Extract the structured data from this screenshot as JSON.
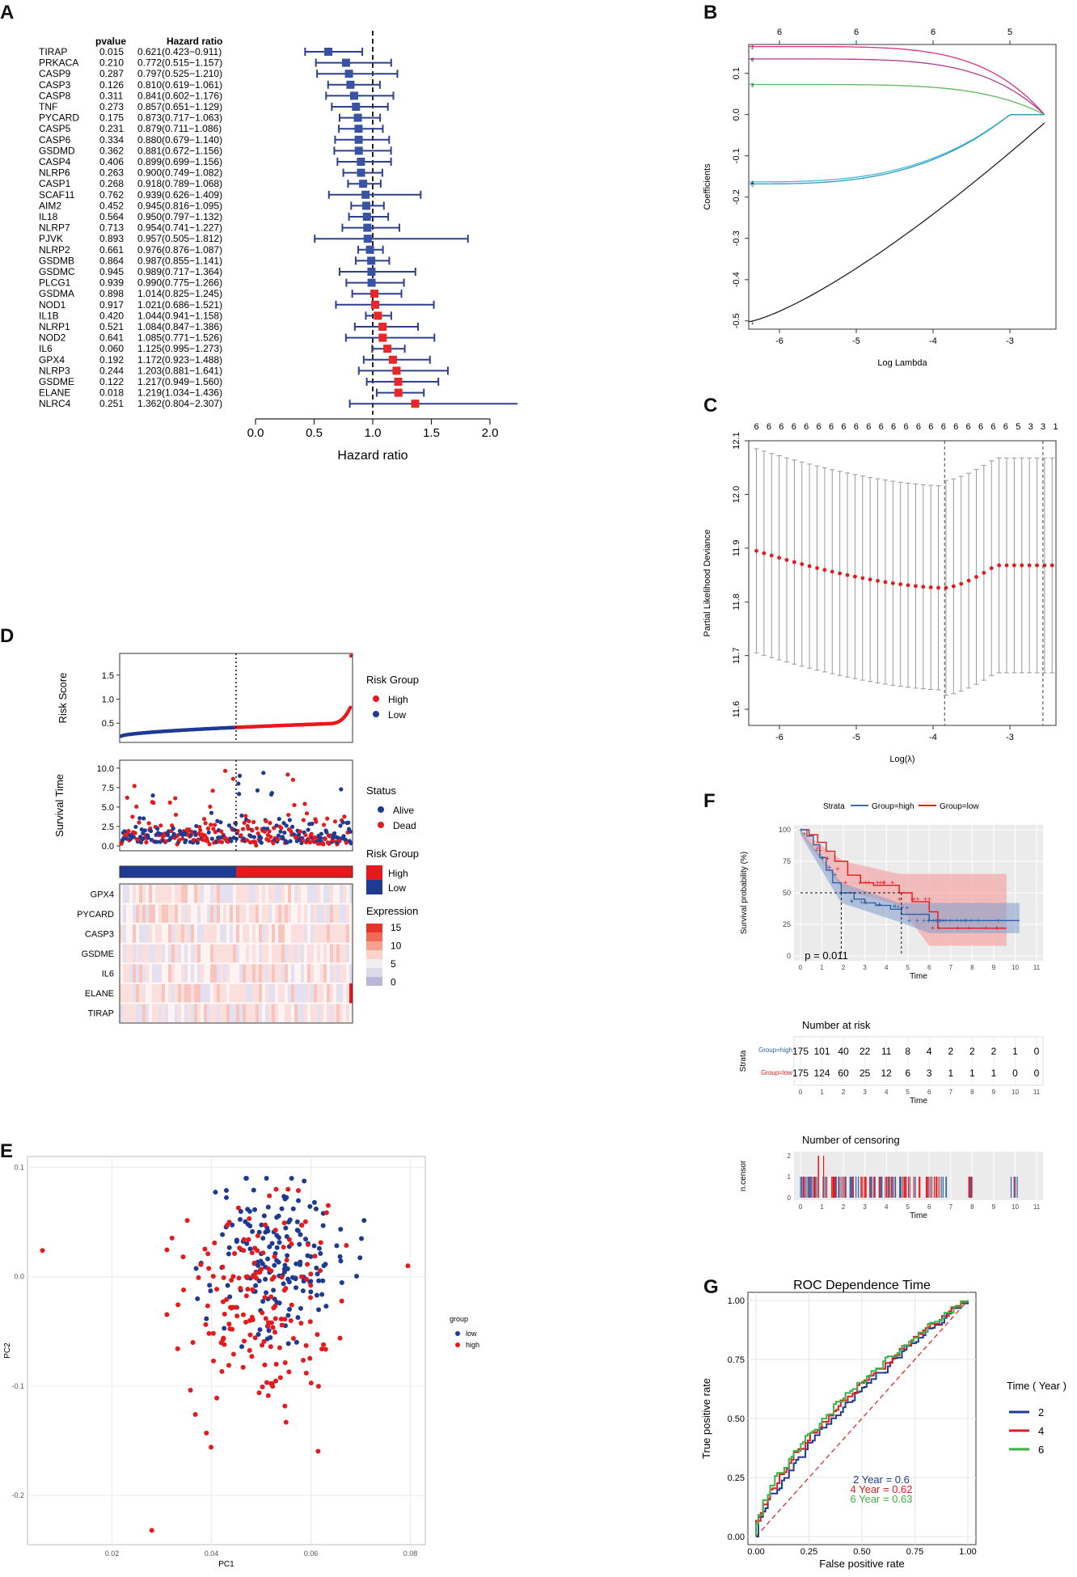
{
  "panels": {
    "A": "A",
    "B": "B",
    "C": "C",
    "D": "D",
    "E": "E",
    "F": "F",
    "G": "G"
  },
  "chart_data": [
    {
      "id": "A",
      "type": "forest",
      "xlabel": "Hazard ratio",
      "col_pvalue": "pvalue",
      "col_hr": "Hazard ratio",
      "xlim": [
        0,
        2.0
      ],
      "ticks": [
        "0.0",
        "0.5",
        "1.0",
        "1.5",
        "2.0"
      ],
      "rows": [
        {
          "gene": "TIRAP",
          "p": "0.015",
          "hr_text": "0.621(0.423−0.911)",
          "hr": 0.621,
          "lo": 0.423,
          "hi": 0.911
        },
        {
          "gene": "PRKACA",
          "p": "0.210",
          "hr_text": "0.772(0.515−1.157)",
          "hr": 0.772,
          "lo": 0.515,
          "hi": 1.157
        },
        {
          "gene": "CASP9",
          "p": "0.287",
          "hr_text": "0.797(0.525−1.210)",
          "hr": 0.797,
          "lo": 0.525,
          "hi": 1.21
        },
        {
          "gene": "CASP3",
          "p": "0.126",
          "hr_text": "0.810(0.619−1.061)",
          "hr": 0.81,
          "lo": 0.619,
          "hi": 1.061
        },
        {
          "gene": "CASP8",
          "p": "0.311",
          "hr_text": "0.841(0.602−1.176)",
          "hr": 0.841,
          "lo": 0.602,
          "hi": 1.176
        },
        {
          "gene": "TNF",
          "p": "0.273",
          "hr_text": "0.857(0.651−1.129)",
          "hr": 0.857,
          "lo": 0.651,
          "hi": 1.129
        },
        {
          "gene": "PYCARD",
          "p": "0.175",
          "hr_text": "0.873(0.717−1.063)",
          "hr": 0.873,
          "lo": 0.717,
          "hi": 1.063
        },
        {
          "gene": "CASP5",
          "p": "0.231",
          "hr_text": "0.879(0.711−1.086)",
          "hr": 0.879,
          "lo": 0.711,
          "hi": 1.086
        },
        {
          "gene": "CASP6",
          "p": "0.334",
          "hr_text": "0.880(0.679−1.140)",
          "hr": 0.88,
          "lo": 0.679,
          "hi": 1.14
        },
        {
          "gene": "GSDMD",
          "p": "0.362",
          "hr_text": "0.881(0.672−1.156)",
          "hr": 0.881,
          "lo": 0.672,
          "hi": 1.156
        },
        {
          "gene": "CASP4",
          "p": "0.406",
          "hr_text": "0.899(0.699−1.156)",
          "hr": 0.899,
          "lo": 0.699,
          "hi": 1.156
        },
        {
          "gene": "NLRP6",
          "p": "0.263",
          "hr_text": "0.900(0.749−1.082)",
          "hr": 0.9,
          "lo": 0.749,
          "hi": 1.082
        },
        {
          "gene": "CASP1",
          "p": "0.268",
          "hr_text": "0.918(0.789−1.068)",
          "hr": 0.918,
          "lo": 0.789,
          "hi": 1.068
        },
        {
          "gene": "SCAF11",
          "p": "0.762",
          "hr_text": "0.939(0.626−1.409)",
          "hr": 0.939,
          "lo": 0.626,
          "hi": 1.409
        },
        {
          "gene": "AIM2",
          "p": "0.452",
          "hr_text": "0.945(0.816−1.095)",
          "hr": 0.945,
          "lo": 0.816,
          "hi": 1.095
        },
        {
          "gene": "IL18",
          "p": "0.564",
          "hr_text": "0.950(0.797−1.132)",
          "hr": 0.95,
          "lo": 0.797,
          "hi": 1.132
        },
        {
          "gene": "NLRP7",
          "p": "0.713",
          "hr_text": "0.954(0.741−1.227)",
          "hr": 0.954,
          "lo": 0.741,
          "hi": 1.227
        },
        {
          "gene": "PJVK",
          "p": "0.893",
          "hr_text": "0.957(0.505−1.812)",
          "hr": 0.957,
          "lo": 0.505,
          "hi": 1.812
        },
        {
          "gene": "NLRP2",
          "p": "0.661",
          "hr_text": "0.976(0.876−1.087)",
          "hr": 0.976,
          "lo": 0.876,
          "hi": 1.087
        },
        {
          "gene": "GSDMB",
          "p": "0.864",
          "hr_text": "0.987(0.855−1.141)",
          "hr": 0.987,
          "lo": 0.855,
          "hi": 1.141
        },
        {
          "gene": "GSDMC",
          "p": "0.945",
          "hr_text": "0.989(0.717−1.364)",
          "hr": 0.989,
          "lo": 0.717,
          "hi": 1.364
        },
        {
          "gene": "PLCG1",
          "p": "0.939",
          "hr_text": "0.990(0.775−1.266)",
          "hr": 0.99,
          "lo": 0.775,
          "hi": 1.266
        },
        {
          "gene": "GSDMA",
          "p": "0.898",
          "hr_text": "1.014(0.825−1.245)",
          "hr": 1.014,
          "lo": 0.825,
          "hi": 1.245
        },
        {
          "gene": "NOD1",
          "p": "0.917",
          "hr_text": "1.021(0.686−1.521)",
          "hr": 1.021,
          "lo": 0.686,
          "hi": 1.521
        },
        {
          "gene": "IL1B",
          "p": "0.420",
          "hr_text": "1.044(0.941−1.158)",
          "hr": 1.044,
          "lo": 0.941,
          "hi": 1.158
        },
        {
          "gene": "NLRP1",
          "p": "0.521",
          "hr_text": "1.084(0.847−1.386)",
          "hr": 1.084,
          "lo": 0.847,
          "hi": 1.386
        },
        {
          "gene": "NOD2",
          "p": "0.641",
          "hr_text": "1.085(0.771−1.526)",
          "hr": 1.085,
          "lo": 0.771,
          "hi": 1.526
        },
        {
          "gene": "IL6",
          "p": "0.060",
          "hr_text": "1.125(0.995−1.273)",
          "hr": 1.125,
          "lo": 0.995,
          "hi": 1.273
        },
        {
          "gene": "GPX4",
          "p": "0.192",
          "hr_text": "1.172(0.923−1.488)",
          "hr": 1.172,
          "lo": 0.923,
          "hi": 1.488
        },
        {
          "gene": "NLRP3",
          "p": "0.244",
          "hr_text": "1.203(0.881−1.641)",
          "hr": 1.203,
          "lo": 0.881,
          "hi": 1.641
        },
        {
          "gene": "GSDME",
          "p": "0.122",
          "hr_text": "1.217(0.949−1.560)",
          "hr": 1.217,
          "lo": 0.949,
          "hi": 1.56
        },
        {
          "gene": "ELANE",
          "p": "0.018",
          "hr_text": "1.219(1.034−1.436)",
          "hr": 1.219,
          "lo": 1.034,
          "hi": 1.436
        },
        {
          "gene": "NLRC4",
          "p": "0.251",
          "hr_text": "1.362(0.804−2.307)",
          "hr": 1.362,
          "lo": 0.804,
          "hi": 2.307
        }
      ],
      "colors": {
        "protective": "#3953a4",
        "risk": "#e8272a"
      }
    },
    {
      "id": "B",
      "type": "line",
      "xlabel": "Log Lambda",
      "ylabel": "Coefficients",
      "xlim": [
        -6.4,
        -2.4
      ],
      "ylim": [
        -0.52,
        0.17
      ],
      "xticks": [
        "-6",
        "-5",
        "-4",
        "-3"
      ],
      "yticks": [
        "-0.5",
        "-0.4",
        "-0.3",
        "-0.2",
        "-0.1",
        "0.0",
        "0.1"
      ],
      "top_ticks": [
        "6",
        "6",
        "6",
        "5"
      ],
      "series": [
        {
          "name": "2",
          "color": "#d63384",
          "start": 0.165
        },
        {
          "name": "6",
          "color": "#b03a8a",
          "start": 0.135
        },
        {
          "name": "3",
          "color": "#5cb85c",
          "start": 0.073
        },
        {
          "name": "4",
          "color": "#46b8da",
          "start": -0.163
        },
        {
          "name": "5",
          "color": "#2a9dbf",
          "start": -0.168
        },
        {
          "name": "1",
          "color": "#222222",
          "start": -0.502
        }
      ]
    },
    {
      "id": "C",
      "type": "errorbar",
      "xlabel": "Log(λ)",
      "ylabel": "Partial Likelihood Deviance",
      "xlim": [
        -6.4,
        -2.4
      ],
      "ylim": [
        11.57,
        12.1
      ],
      "xticks": [
        "-6",
        "-5",
        "-4",
        "-3"
      ],
      "yticks": [
        "11.6",
        "11.7",
        "11.8",
        "11.9",
        "12.0",
        "12.1"
      ],
      "top_ticks": [
        "6",
        "6",
        "6",
        "6",
        "6",
        "6",
        "6",
        "6",
        "6",
        "6",
        "6",
        "6",
        "6",
        "6",
        "6",
        "6",
        "6",
        "6",
        "6",
        "6",
        "6",
        "5",
        "3",
        "3",
        "1"
      ],
      "vlines": [
        -3.85,
        -2.57
      ],
      "center_min": 11.826,
      "center_start": 11.895
    },
    {
      "id": "D",
      "type": "risk-plot",
      "risk_label": "Risk Score",
      "surv_label": "Survival Time",
      "risk_yticks": [
        "0.5",
        "1.0",
        "1.5"
      ],
      "surv_yticks": [
        "0.0",
        "2.5",
        "5.0",
        "7.5",
        "10.0"
      ],
      "legend_risk_title": "Risk Group",
      "legend_high": "High",
      "legend_low": "Low",
      "legend_status_title": "Status",
      "legend_alive": "Alive",
      "legend_dead": "Dead",
      "legend_risk_title2": "Risk Group",
      "legend_high2": "High",
      "legend_low2": "Low",
      "legend_expr_title": "Expression",
      "expr_ticks": [
        "15",
        "10",
        "5",
        "0"
      ],
      "genes": [
        "GPX4",
        "PYCARD",
        "CASP3",
        "GSDME",
        "IL6",
        "ELANE",
        "TIRAP"
      ],
      "n_low": 175,
      "n_high": 175
    },
    {
      "id": "E",
      "type": "scatter",
      "xlabel": "PC1",
      "ylabel": "PC2",
      "xticks": [
        "0.02",
        "0.04",
        "0.06",
        "0.08"
      ],
      "yticks": [
        "0.1",
        "0.0",
        "-0.1",
        "-0.2"
      ],
      "xlim": [
        0.003,
        0.083
      ],
      "ylim": [
        -0.245,
        0.11
      ],
      "legend_title": "group",
      "legend": [
        "low",
        "high"
      ],
      "colors": [
        "#1f3a93",
        "#e41a1c"
      ]
    },
    {
      "id": "F",
      "type": "km",
      "strata_title": "Strata",
      "strata_high": "Group=high",
      "strata_low": "Group=low",
      "ylabel": "Survival probability (%)",
      "xlabel": "Time",
      "pvalue": "p = 0.011",
      "xticks": [
        "0",
        "1",
        "2",
        "3",
        "4",
        "5",
        "6",
        "7",
        "8",
        "9",
        "10",
        "11"
      ],
      "yticks": [
        "0",
        "25",
        "50",
        "75",
        "100"
      ],
      "risk_title": "Number at risk",
      "risk_ylabel": "Strata",
      "risk_high": [
        175,
        101,
        40,
        22,
        11,
        8,
        4,
        2,
        2,
        2,
        1,
        0
      ],
      "risk_low": [
        175,
        124,
        60,
        25,
        12,
        6,
        3,
        1,
        1,
        1,
        0,
        0
      ],
      "censor_title": "Number of censoring",
      "censor_ylabel": "n.censor",
      "censor_yticks": [
        "0",
        "1",
        "2"
      ]
    },
    {
      "id": "G",
      "type": "roc",
      "title": "ROC Dependence Time",
      "xlabel": "False positive rate",
      "ylabel": "True positive rate",
      "xticks": [
        "0.00",
        "0.25",
        "0.50",
        "0.75",
        "1.00"
      ],
      "yticks": [
        "0.00",
        "0.25",
        "0.50",
        "0.75",
        "1.00"
      ],
      "legend_title": "Time ( Year )",
      "series": [
        {
          "name": "2",
          "color": "#1f3a93",
          "auc_text": "2 Year  =  0.6",
          "auc": 0.6
        },
        {
          "name": "4",
          "color": "#e41a1c",
          "auc_text": "4 Year  =  0.62",
          "auc": 0.62
        },
        {
          "name": "6",
          "color": "#3cb043",
          "auc_text": "6 Year  =  0.63",
          "auc": 0.63
        }
      ]
    }
  ]
}
